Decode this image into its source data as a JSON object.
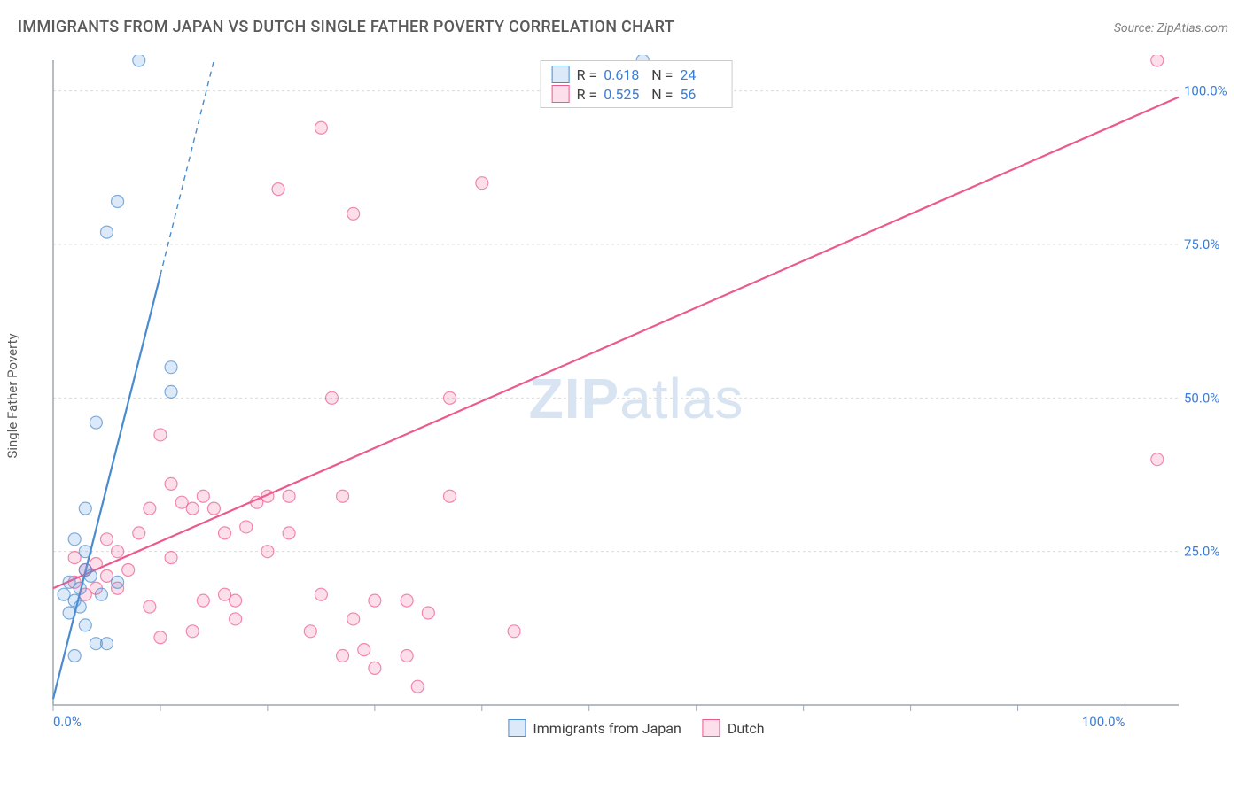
{
  "title": "IMMIGRANTS FROM JAPAN VS DUTCH SINGLE FATHER POVERTY CORRELATION CHART",
  "source_label": "Source: ",
  "source_name": "ZipAtlas.com",
  "y_axis_title": "Single Father Poverty",
  "watermark_bold": "ZIP",
  "watermark_light": "atlas",
  "chart": {
    "type": "scatter",
    "xlim": [
      0,
      105
    ],
    "ylim": [
      0,
      105
    ],
    "x_tick_labels": {
      "0": "0.0%",
      "100": "100.0%"
    },
    "y_tick_labels": {
      "25": "25.0%",
      "50": "50.0%",
      "75": "75.0%",
      "100": "100.0%"
    },
    "x_minor_ticks": [
      10,
      20,
      30,
      40,
      50,
      60,
      70,
      80,
      90
    ],
    "y_gridlines": [
      25,
      50,
      75,
      100
    ],
    "background_color": "#ffffff",
    "grid_color": "#dcdcdc",
    "axis_color": "#9ba7b4",
    "marker_radius": 7,
    "marker_fill_opacity": 0.22,
    "marker_stroke_opacity": 0.7,
    "trend_line_width": 2.2
  },
  "series": {
    "a": {
      "label": "Immigrants from Japan",
      "color": "#5a9bde",
      "stroke": "#4a8bd0",
      "R": "0.618",
      "N": "24",
      "trend": {
        "x1": 0,
        "y1": 1,
        "x2_solid": 10,
        "y2_solid": 70,
        "x2_dash": 15,
        "y2_dash": 105
      },
      "points": [
        [
          1,
          18
        ],
        [
          1.5,
          20
        ],
        [
          2,
          17
        ],
        [
          2.5,
          19
        ],
        [
          3,
          22
        ],
        [
          1.5,
          15
        ],
        [
          2.5,
          16
        ],
        [
          3.5,
          21
        ],
        [
          4,
          10
        ],
        [
          5,
          10
        ],
        [
          2,
          8
        ],
        [
          3,
          13
        ],
        [
          4.5,
          18
        ],
        [
          2,
          27
        ],
        [
          3,
          25
        ],
        [
          6,
          20
        ],
        [
          3,
          32
        ],
        [
          4,
          46
        ],
        [
          11,
          51
        ],
        [
          11,
          55
        ],
        [
          5,
          77
        ],
        [
          6,
          82
        ],
        [
          8,
          105
        ],
        [
          55,
          105
        ]
      ]
    },
    "b": {
      "label": "Dutch",
      "color": "#f06f9e",
      "stroke": "#ec5a8d",
      "R": "0.525",
      "N": "56",
      "trend": {
        "x1": 0,
        "y1": 19,
        "x2_solid": 105,
        "y2_solid": 99,
        "x2_dash": 105,
        "y2_dash": 99
      },
      "points": [
        [
          2,
          20
        ],
        [
          3,
          22
        ],
        [
          4,
          23
        ],
        [
          5,
          21
        ],
        [
          3,
          18
        ],
        [
          6,
          19
        ],
        [
          7,
          22
        ],
        [
          8,
          28
        ],
        [
          9,
          32
        ],
        [
          10,
          44
        ],
        [
          11,
          36
        ],
        [
          12,
          33
        ],
        [
          13,
          32
        ],
        [
          14,
          34
        ],
        [
          22,
          34
        ],
        [
          15,
          32
        ],
        [
          16,
          28
        ],
        [
          18,
          29
        ],
        [
          11,
          24
        ],
        [
          14,
          17
        ],
        [
          16,
          18
        ],
        [
          17,
          17
        ],
        [
          10,
          11
        ],
        [
          13,
          12
        ],
        [
          17,
          14
        ],
        [
          20,
          25
        ],
        [
          19,
          33
        ],
        [
          20,
          34
        ],
        [
          22,
          28
        ],
        [
          24,
          12
        ],
        [
          25,
          18
        ],
        [
          27,
          8
        ],
        [
          28,
          14
        ],
        [
          29,
          9
        ],
        [
          30,
          6
        ],
        [
          33,
          8
        ],
        [
          34,
          3
        ],
        [
          26,
          50
        ],
        [
          27,
          34
        ],
        [
          30,
          17
        ],
        [
          33,
          17
        ],
        [
          35,
          15
        ],
        [
          37,
          34
        ],
        [
          37,
          50
        ],
        [
          43,
          12
        ],
        [
          21,
          84
        ],
        [
          25,
          94
        ],
        [
          28,
          80
        ],
        [
          40,
          85
        ],
        [
          103,
          40
        ],
        [
          103,
          105
        ],
        [
          9,
          16
        ],
        [
          6,
          25
        ],
        [
          5,
          27
        ],
        [
          4,
          19
        ],
        [
          2,
          24
        ]
      ]
    }
  },
  "legend_labels": {
    "R": "R  =",
    "N": "N  ="
  }
}
